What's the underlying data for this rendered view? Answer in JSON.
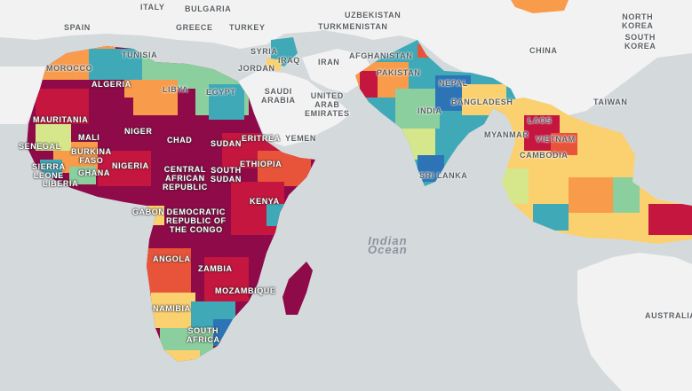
{
  "map": {
    "colors": {
      "ocean": "#d4dadc",
      "land": "#f2f2f2",
      "scale": [
        "#8e0a48",
        "#c4163f",
        "#e8543a",
        "#f89b4a",
        "#fbd06e",
        "#d6e68a",
        "#8ccf9e",
        "#3fa9b8",
        "#2c74b6"
      ]
    },
    "labels": {
      "italy": "ITALY",
      "bulgaria": "BULGARIA",
      "spain": "SPAIN",
      "greece": "GREECE",
      "turkey": "TURKEY",
      "uzbekistan": "UZBEKISTAN",
      "turkmenistan": "TURKMENISTAN",
      "north_korea": "NORTH\nKOREA",
      "south_korea": "SOUTH\nKOREA",
      "tunisia": "TUNISIA",
      "morocco": "MOROCCO",
      "syria": "SYRIA",
      "iraq": "IRAQ",
      "jordan": "JORDAN",
      "iran": "IRAN",
      "afghanistan": "AFGHANISTAN",
      "china": "CHINA",
      "algeria": "ALGERIA",
      "libya": "LIBYA",
      "egypt": "EGYPT",
      "pakistan": "PAKISTAN",
      "nepal": "NEPAL",
      "saudi_arabia": "SAUDI\nARABIA",
      "uae": "UNITED\nARAB\nEMIRATES",
      "bangladesh": "BANGLADESH",
      "india": "INDIA",
      "taiwan": "TAIWAN",
      "mauritania": "MAURITANIA",
      "laos": "LAOS",
      "niger": "NIGER",
      "mali": "MALI",
      "chad": "CHAD",
      "sudan": "SUDAN",
      "eritrea": "ERITREA",
      "yemen": "YEMEN",
      "myanmar": "MYANMAR",
      "vietnam": "VIETNAM",
      "senegal": "SENEGAL",
      "burkina_faso": "BURKINA\nFASO",
      "cambodia": "CAMBODIA",
      "sierra_leone": "SIERRA\nLEONE",
      "ghana": "GHANA",
      "nigeria": "NIGERIA",
      "liberia": "LIBERIA",
      "ethiopia": "ETHIOPIA",
      "car": "CENTRAL\nAFRICAN\nREPUBLIC",
      "south_sudan": "SOUTH\nSUDAN",
      "sri_lanka": "SRI LANKA",
      "kenya": "KENYA",
      "gabon": "GABON",
      "drc": "DEMOCRATIC\nREPUBLIC OF\nTHE CONGO",
      "indian_ocean": "Indian\nOcean",
      "angola": "ANGOLA",
      "zambia": "ZAMBIA",
      "mozambique": "MOZAMBIQUE",
      "namibia": "NAMIBIA",
      "australia": "AUSTRALIA",
      "south_africa": "SOUTH\nAFRICA"
    }
  }
}
